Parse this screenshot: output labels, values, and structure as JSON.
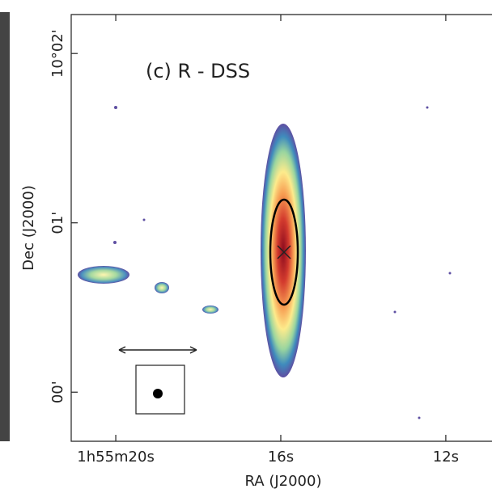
{
  "chart_data": {
    "type": "image",
    "annotation": "(c) R - DSS",
    "x_label": "RA (J2000)",
    "y_label": "Dec (J2000)",
    "xlim": [
      21.08,
      10.88
    ],
    "xticks": [
      {
        "value": 20,
        "label": "1h55m20s"
      },
      {
        "value": 16,
        "label": "16s"
      },
      {
        "value": 12,
        "label": "12s"
      }
    ],
    "ylim": [
      -0.29,
      2.23
    ],
    "yticks": [
      {
        "value": 0,
        "label": "00'"
      },
      {
        "value": 1,
        "label": "01'"
      },
      {
        "value": 2,
        "label": "10°02'"
      }
    ]
  }
}
